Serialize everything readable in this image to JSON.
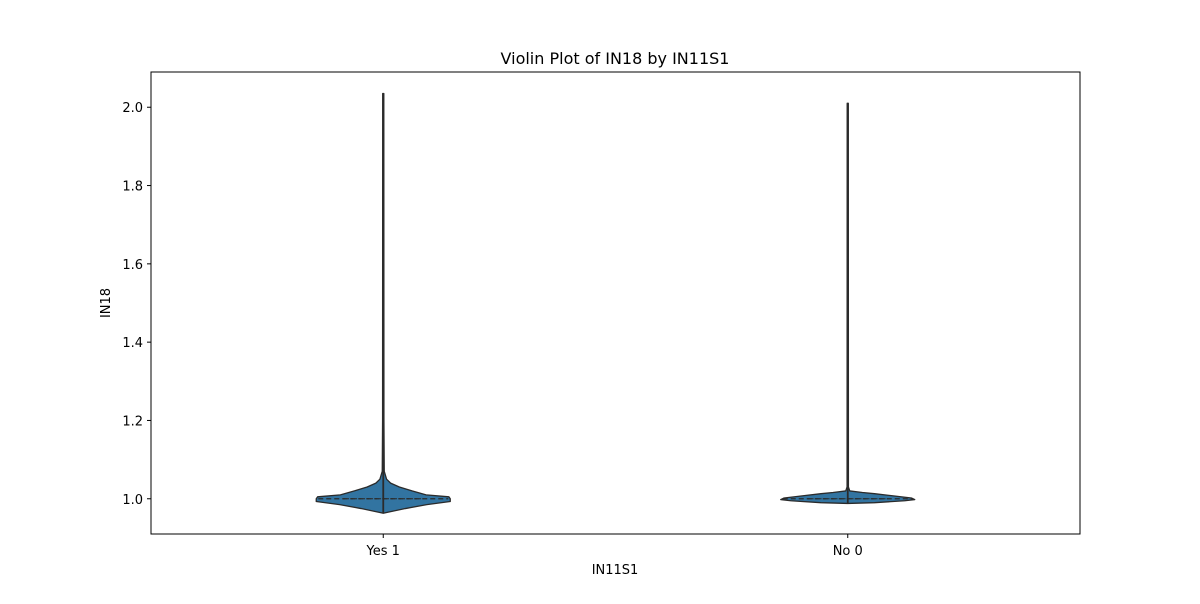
{
  "chart_data": {
    "type": "violin",
    "title": "Violin Plot of IN18 by IN11S1",
    "xlabel": "IN11S1",
    "ylabel": "IN18",
    "ylim": [
      0.91,
      2.09
    ],
    "yticks": [
      1.0,
      1.2,
      1.4,
      1.6,
      1.8,
      2.0
    ],
    "ytick_labels": [
      "1.0",
      "1.2",
      "1.4",
      "1.6",
      "1.8",
      "2.0"
    ],
    "categories": [
      "Yes 1",
      "No 0"
    ],
    "grid": false,
    "colors": {
      "fill": "#3274a1",
      "edge": "#2b2b2b",
      "frame": "#000000"
    },
    "violins": [
      {
        "category": "Yes 1",
        "y_min": 0.963,
        "y_max": 2.035,
        "median": 1.0,
        "q1": 1.0,
        "q3": 1.0,
        "density": [
          {
            "y": 0.963,
            "w": 0.0
          },
          {
            "y": 0.965,
            "w": 0.05
          },
          {
            "y": 0.975,
            "w": 0.33
          },
          {
            "y": 0.985,
            "w": 0.65
          },
          {
            "y": 0.993,
            "w": 1.0
          },
          {
            "y": 1.0,
            "w": 1.0
          },
          {
            "y": 1.005,
            "w": 0.98
          },
          {
            "y": 1.01,
            "w": 0.64
          },
          {
            "y": 1.02,
            "w": 0.43
          },
          {
            "y": 1.03,
            "w": 0.24
          },
          {
            "y": 1.04,
            "w": 0.11
          },
          {
            "y": 1.05,
            "w": 0.05
          },
          {
            "y": 1.07,
            "w": 0.015
          },
          {
            "y": 1.2,
            "w": 0.01
          },
          {
            "y": 2.035,
            "w": 0.008
          }
        ]
      },
      {
        "category": "No 0",
        "y_min": 0.988,
        "y_max": 2.01,
        "median": 1.0,
        "q1": 1.0,
        "q3": 1.0,
        "density": [
          {
            "y": 0.988,
            "w": 0.0
          },
          {
            "y": 0.99,
            "w": 0.4
          },
          {
            "y": 0.995,
            "w": 0.85
          },
          {
            "y": 0.998,
            "w": 1.0
          },
          {
            "y": 1.002,
            "w": 0.95
          },
          {
            "y": 1.008,
            "w": 0.65
          },
          {
            "y": 1.013,
            "w": 0.4
          },
          {
            "y": 1.016,
            "w": 0.22
          },
          {
            "y": 1.02,
            "w": 0.03
          },
          {
            "y": 1.03,
            "w": 0.01
          },
          {
            "y": 2.01,
            "w": 0.008
          }
        ]
      }
    ]
  }
}
